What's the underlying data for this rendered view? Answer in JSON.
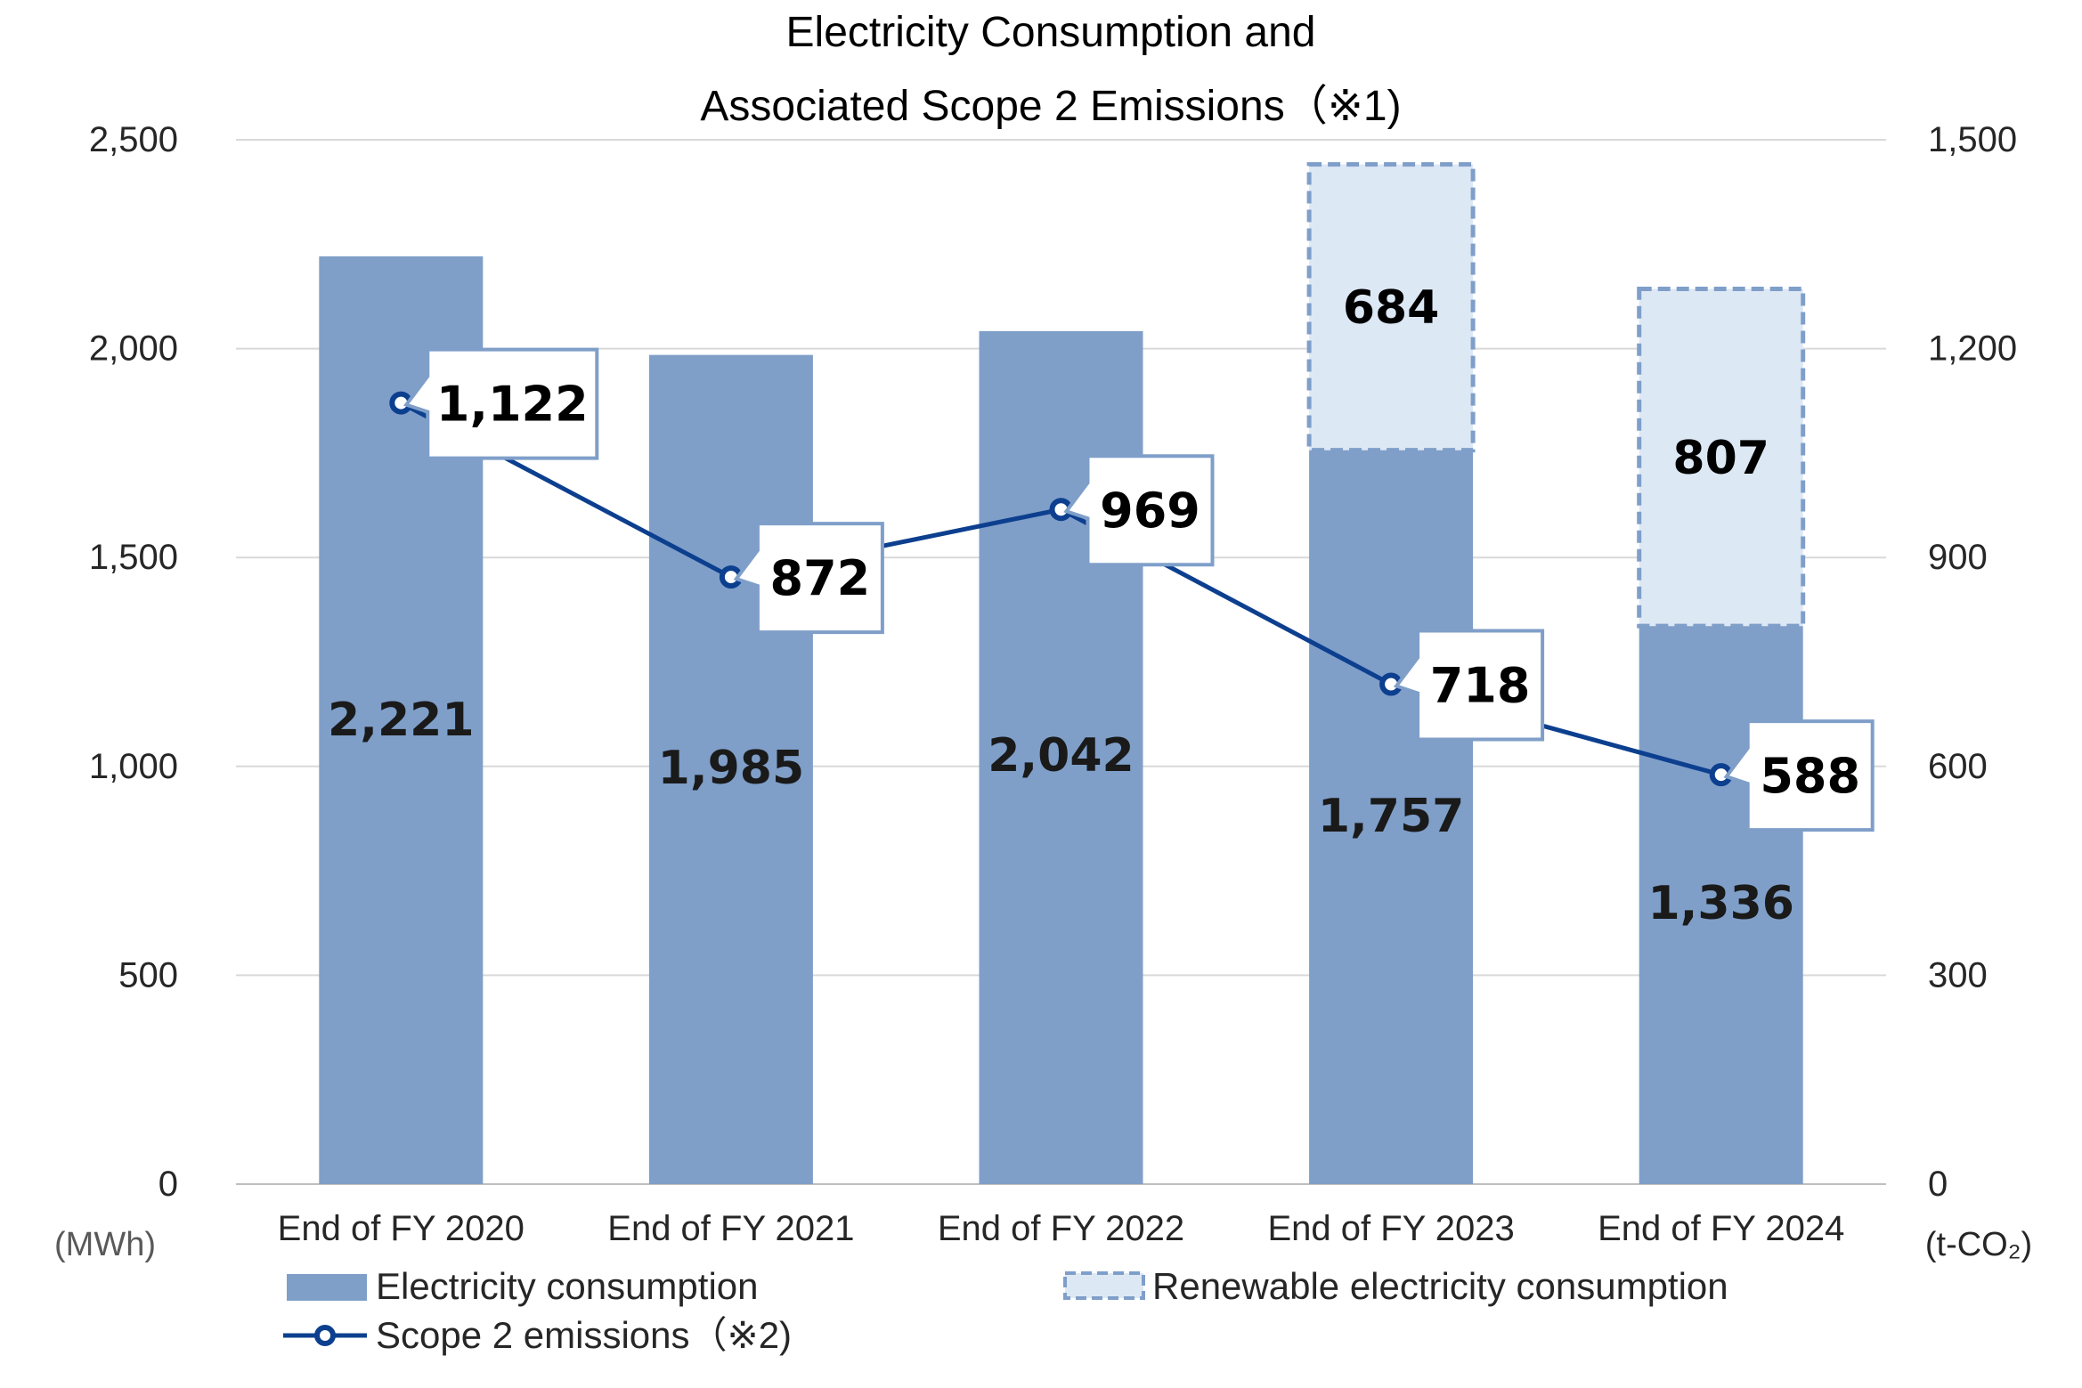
{
  "chart_data": {
    "type": "bar",
    "title_lines": [
      "Electricity Consumption and",
      "Associated Scope 2 Emissions（※1)"
    ],
    "categories": [
      "End of FY 2020",
      "End of FY 2021",
      "End of FY 2022",
      "End of FY 2023",
      "End of FY 2024"
    ],
    "left_axis": {
      "unit": "(MWh)",
      "ylim": [
        0,
        2500
      ],
      "ticks": [
        0,
        500,
        1000,
        1500,
        2000,
        2500
      ],
      "tick_labels": [
        "0",
        "500",
        "1,000",
        "1,500",
        "2,000",
        "2,500"
      ]
    },
    "right_axis": {
      "unit": "(t-CO₂)",
      "ylim": [
        0,
        1500
      ],
      "ticks": [
        0,
        300,
        600,
        900,
        1200,
        1500
      ],
      "tick_labels": [
        "0",
        "300",
        "600",
        "900",
        "1,200",
        "1,500"
      ]
    },
    "grid": true,
    "legend_position": "bottom",
    "series": [
      {
        "name": "Electricity consumption",
        "kind": "bar",
        "axis": "left",
        "values": [
          2221,
          1985,
          2042,
          1757,
          1336
        ],
        "labels": [
          "2,221",
          "1,985",
          "2,042",
          "1,757",
          "1,336"
        ],
        "color": "#7F9FC9"
      },
      {
        "name": "Renewable electricity consumption",
        "kind": "bar-stacked-dashed",
        "axis": "left",
        "values": [
          null,
          null,
          null,
          684,
          807
        ],
        "labels": [
          "",
          "",
          "",
          "684",
          "807"
        ],
        "color": "#DDE8F5",
        "border_color": "#7F9FC9"
      },
      {
        "name": "Scope 2 emissions（※2)",
        "kind": "line",
        "axis": "right",
        "values": [
          1122,
          872,
          969,
          718,
          588
        ],
        "labels": [
          "1,122",
          "872",
          "969",
          "718",
          "588"
        ],
        "color": "#0D3F8F"
      }
    ]
  }
}
